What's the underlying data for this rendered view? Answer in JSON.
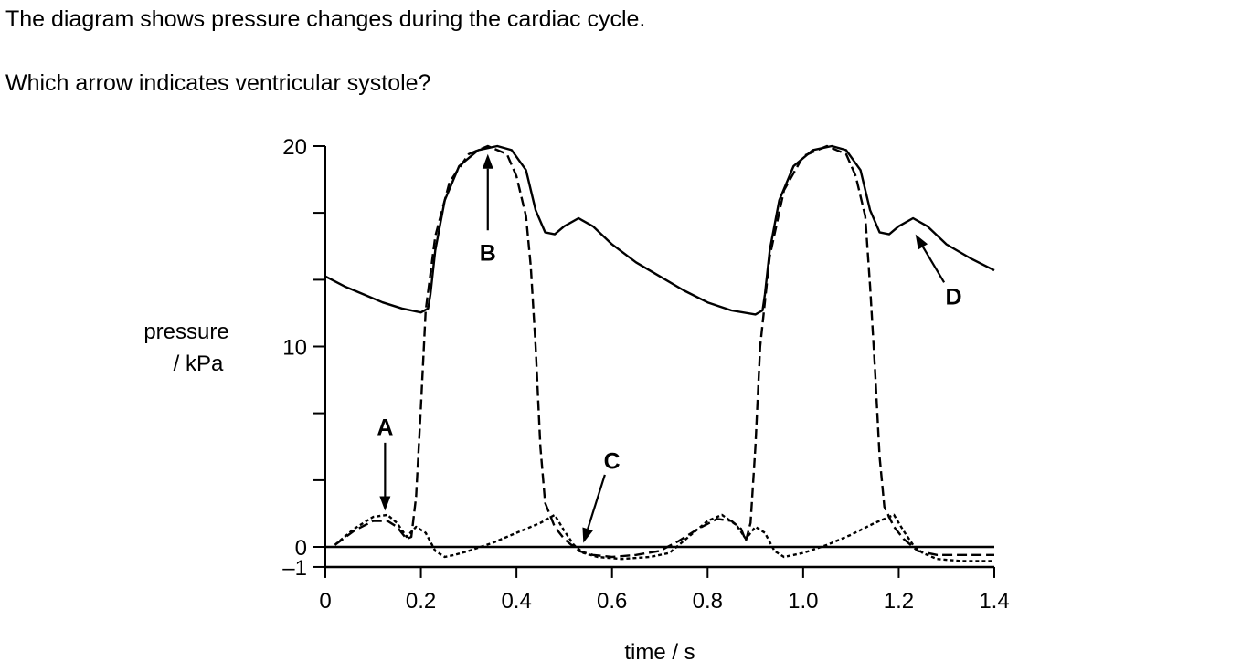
{
  "question": {
    "intro": "The diagram shows pressure changes during the cardiac cycle.",
    "prompt": "Which arrow indicates ventricular systole?"
  },
  "chart_data": {
    "type": "line",
    "title": "",
    "xlabel": "time / s",
    "ylabel_line1": "pressure",
    "ylabel_line2": "/ kPa",
    "xlim": [
      0,
      1.4
    ],
    "ylim": [
      -1,
      20
    ],
    "x_ticks": [
      {
        "value": 0,
        "label": "0"
      },
      {
        "value": 0.2,
        "label": "0.2"
      },
      {
        "value": 0.4,
        "label": "0.4"
      },
      {
        "value": 0.6,
        "label": "0.6"
      },
      {
        "value": 0.8,
        "label": "0.8"
      },
      {
        "value": 1.0,
        "label": "1.0"
      },
      {
        "value": 1.2,
        "label": "1.2"
      },
      {
        "value": 1.4,
        "label": "1.4"
      }
    ],
    "y_ticks": [
      {
        "value": 20,
        "label": "20"
      },
      {
        "value": 16.67,
        "label": ""
      },
      {
        "value": 13.33,
        "label": ""
      },
      {
        "value": 10,
        "label": "10"
      },
      {
        "value": 6.67,
        "label": ""
      },
      {
        "value": 3.33,
        "label": ""
      },
      {
        "value": 0,
        "label": "0"
      },
      {
        "value": -1,
        "label": "–1"
      }
    ],
    "grid": false,
    "series": [
      {
        "style": "solid",
        "points": [
          [
            0,
            13.5
          ],
          [
            0.04,
            13.0
          ],
          [
            0.08,
            12.6
          ],
          [
            0.12,
            12.2
          ],
          [
            0.16,
            11.9
          ],
          [
            0.2,
            11.7
          ],
          [
            0.215,
            11.9
          ],
          [
            0.22,
            12.6
          ],
          [
            0.23,
            14.8
          ],
          [
            0.25,
            17.3
          ],
          [
            0.28,
            19.0
          ],
          [
            0.32,
            19.8
          ],
          [
            0.36,
            20.0
          ],
          [
            0.39,
            19.8
          ],
          [
            0.42,
            18.8
          ],
          [
            0.44,
            16.8
          ],
          [
            0.46,
            15.7
          ],
          [
            0.48,
            15.6
          ],
          [
            0.5,
            16.0
          ],
          [
            0.53,
            16.4
          ],
          [
            0.56,
            16.0
          ],
          [
            0.6,
            15.1
          ],
          [
            0.65,
            14.2
          ],
          [
            0.7,
            13.5
          ],
          [
            0.75,
            12.8
          ],
          [
            0.8,
            12.2
          ],
          [
            0.85,
            11.8
          ],
          [
            0.9,
            11.6
          ],
          [
            0.915,
            11.8
          ],
          [
            0.92,
            12.6
          ],
          [
            0.93,
            14.8
          ],
          [
            0.95,
            17.3
          ],
          [
            0.98,
            19.0
          ],
          [
            1.02,
            19.8
          ],
          [
            1.06,
            20.0
          ],
          [
            1.09,
            19.8
          ],
          [
            1.12,
            18.8
          ],
          [
            1.14,
            16.8
          ],
          [
            1.16,
            15.7
          ],
          [
            1.18,
            15.6
          ],
          [
            1.2,
            16.0
          ],
          [
            1.23,
            16.4
          ],
          [
            1.26,
            16.0
          ],
          [
            1.3,
            15.1
          ],
          [
            1.35,
            14.4
          ],
          [
            1.4,
            13.8
          ]
        ]
      },
      {
        "style": "dashed",
        "points": [
          [
            0.02,
            0.1
          ],
          [
            0.06,
            0.8
          ],
          [
            0.1,
            1.3
          ],
          [
            0.13,
            1.3
          ],
          [
            0.15,
            1.0
          ],
          [
            0.17,
            0.4
          ],
          [
            0.18,
            0.5
          ],
          [
            0.19,
            2.5
          ],
          [
            0.2,
            7
          ],
          [
            0.21,
            11.8
          ],
          [
            0.23,
            15.5
          ],
          [
            0.26,
            18.2
          ],
          [
            0.3,
            19.6
          ],
          [
            0.34,
            20.0
          ],
          [
            0.38,
            19.6
          ],
          [
            0.4,
            18.5
          ],
          [
            0.42,
            16.5
          ],
          [
            0.43,
            14
          ],
          [
            0.44,
            10
          ],
          [
            0.45,
            5
          ],
          [
            0.46,
            2.2
          ],
          [
            0.48,
            1.0
          ],
          [
            0.5,
            0.4
          ],
          [
            0.53,
            -0.2
          ],
          [
            0.56,
            -0.4
          ],
          [
            0.6,
            -0.5
          ],
          [
            0.65,
            -0.4
          ],
          [
            0.7,
            -0.2
          ],
          [
            0.74,
            0.3
          ],
          [
            0.78,
            0.9
          ],
          [
            0.82,
            1.4
          ],
          [
            0.85,
            1.3
          ],
          [
            0.87,
            0.9
          ],
          [
            0.88,
            0.3
          ],
          [
            0.89,
            1.2
          ],
          [
            0.9,
            5
          ],
          [
            0.91,
            10
          ],
          [
            0.93,
            14.5
          ],
          [
            0.96,
            17.8
          ],
          [
            1.0,
            19.5
          ],
          [
            1.05,
            20.0
          ],
          [
            1.09,
            19.6
          ],
          [
            1.11,
            18.5
          ],
          [
            1.13,
            16.5
          ],
          [
            1.14,
            13
          ],
          [
            1.15,
            9
          ],
          [
            1.16,
            4.5
          ],
          [
            1.17,
            2.0
          ],
          [
            1.19,
            1.0
          ],
          [
            1.21,
            0.4
          ],
          [
            1.24,
            -0.2
          ],
          [
            1.28,
            -0.4
          ],
          [
            1.32,
            -0.4
          ],
          [
            1.4,
            -0.4
          ]
        ]
      },
      {
        "style": "dotted",
        "points": [
          [
            0.02,
            0.1
          ],
          [
            0.06,
            0.9
          ],
          [
            0.1,
            1.5
          ],
          [
            0.13,
            1.6
          ],
          [
            0.15,
            1.2
          ],
          [
            0.17,
            0.5
          ],
          [
            0.19,
            1.0
          ],
          [
            0.21,
            0.7
          ],
          [
            0.23,
            -0.2
          ],
          [
            0.25,
            -0.5
          ],
          [
            0.27,
            -0.4
          ],
          [
            0.3,
            -0.2
          ],
          [
            0.35,
            0.2
          ],
          [
            0.4,
            0.7
          ],
          [
            0.45,
            1.2
          ],
          [
            0.48,
            1.6
          ],
          [
            0.5,
            0.8
          ],
          [
            0.52,
            0.1
          ],
          [
            0.54,
            -0.3
          ],
          [
            0.57,
            -0.5
          ],
          [
            0.62,
            -0.6
          ],
          [
            0.68,
            -0.5
          ],
          [
            0.72,
            -0.3
          ],
          [
            0.76,
            0.5
          ],
          [
            0.8,
            1.3
          ],
          [
            0.83,
            1.6
          ],
          [
            0.86,
            1.1
          ],
          [
            0.88,
            0.4
          ],
          [
            0.9,
            1.0
          ],
          [
            0.92,
            0.7
          ],
          [
            0.94,
            -0.2
          ],
          [
            0.96,
            -0.5
          ],
          [
            1.0,
            -0.3
          ],
          [
            1.05,
            0.1
          ],
          [
            1.1,
            0.6
          ],
          [
            1.15,
            1.2
          ],
          [
            1.19,
            1.6
          ],
          [
            1.21,
            0.8
          ],
          [
            1.23,
            0.1
          ],
          [
            1.25,
            -0.3
          ],
          [
            1.28,
            -0.6
          ],
          [
            1.33,
            -0.7
          ],
          [
            1.4,
            -0.7
          ]
        ]
      }
    ],
    "arrows": [
      {
        "label": "A",
        "tip": [
          0.125,
          1.8
        ],
        "tail": [
          0.125,
          5.2
        ],
        "label_at": [
          0.125,
          6.0
        ]
      },
      {
        "label": "B",
        "tip": [
          0.34,
          19.6
        ],
        "tail": [
          0.34,
          15.8
        ],
        "label_at": [
          0.34,
          14.7
        ]
      },
      {
        "label": "C",
        "tip": [
          0.54,
          0.2
        ],
        "tail": [
          0.585,
          3.6
        ],
        "label_at": [
          0.6,
          4.3
        ]
      },
      {
        "label": "D",
        "tip": [
          1.235,
          15.6
        ],
        "tail": [
          1.295,
          13.2
        ],
        "label_at": [
          1.315,
          12.5
        ]
      }
    ]
  }
}
